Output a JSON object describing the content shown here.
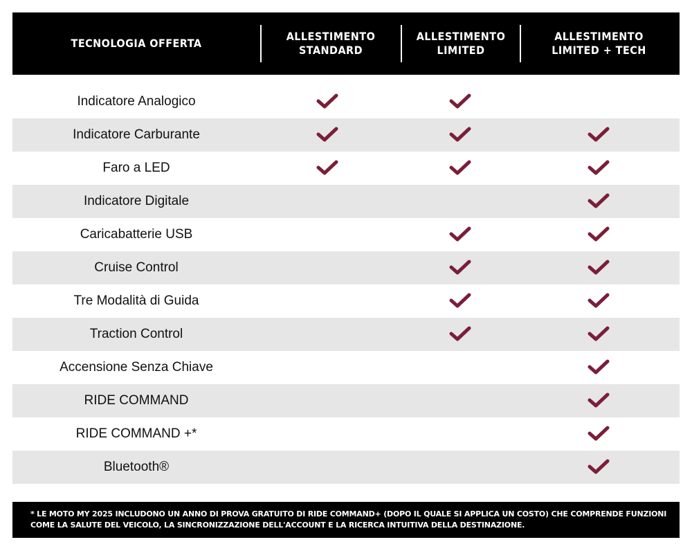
{
  "colors": {
    "check": "#7a1e3a",
    "header_bg": "#000000",
    "stripe": "#e6e6e6"
  },
  "header": [
    "TECNOLOGIA OFFERTA",
    "ALLESTIMENTO\nSTANDARD",
    "ALLESTIMENTO\nLIMITED",
    "ALLESTIMENTO\nLIMITED + TECH"
  ],
  "rows": [
    {
      "feature": "Indicatore Analogico",
      "checks": [
        true,
        true,
        false
      ]
    },
    {
      "feature": "Indicatore Carburante",
      "checks": [
        true,
        true,
        true
      ]
    },
    {
      "feature": "Faro a LED",
      "checks": [
        true,
        true,
        true
      ]
    },
    {
      "feature": "Indicatore Digitale",
      "checks": [
        false,
        false,
        true
      ]
    },
    {
      "feature": "Caricabatterie USB",
      "checks": [
        false,
        true,
        true
      ]
    },
    {
      "feature": "Cruise Control",
      "checks": [
        false,
        true,
        true
      ]
    },
    {
      "feature": "Tre Modalità di Guida",
      "checks": [
        false,
        true,
        true
      ]
    },
    {
      "feature": "Traction Control",
      "checks": [
        false,
        true,
        true
      ]
    },
    {
      "feature": "Accensione Senza Chiave",
      "checks": [
        false,
        false,
        true
      ]
    },
    {
      "feature": "RIDE COMMAND",
      "checks": [
        false,
        false,
        true
      ]
    },
    {
      "feature": "RIDE COMMAND +*",
      "checks": [
        false,
        false,
        true
      ]
    },
    {
      "feature": "Bluetooth®",
      "checks": [
        false,
        false,
        true
      ]
    }
  ],
  "footnote": "* LE MOTO MY 2025 INCLUDONO UN ANNO DI PROVA GRATUITO DI RIDE COMMAND+ (DOPO IL QUALE SI APPLICA UN COSTO) CHE COMPRENDE FUNZIONI COME LA SALUTE DEL VEICOLO, LA SINCRONIZZAZIONE DELL'ACCOUNT E LA RICERCA INTUITIVA DELLA DESTINAZIONE."
}
